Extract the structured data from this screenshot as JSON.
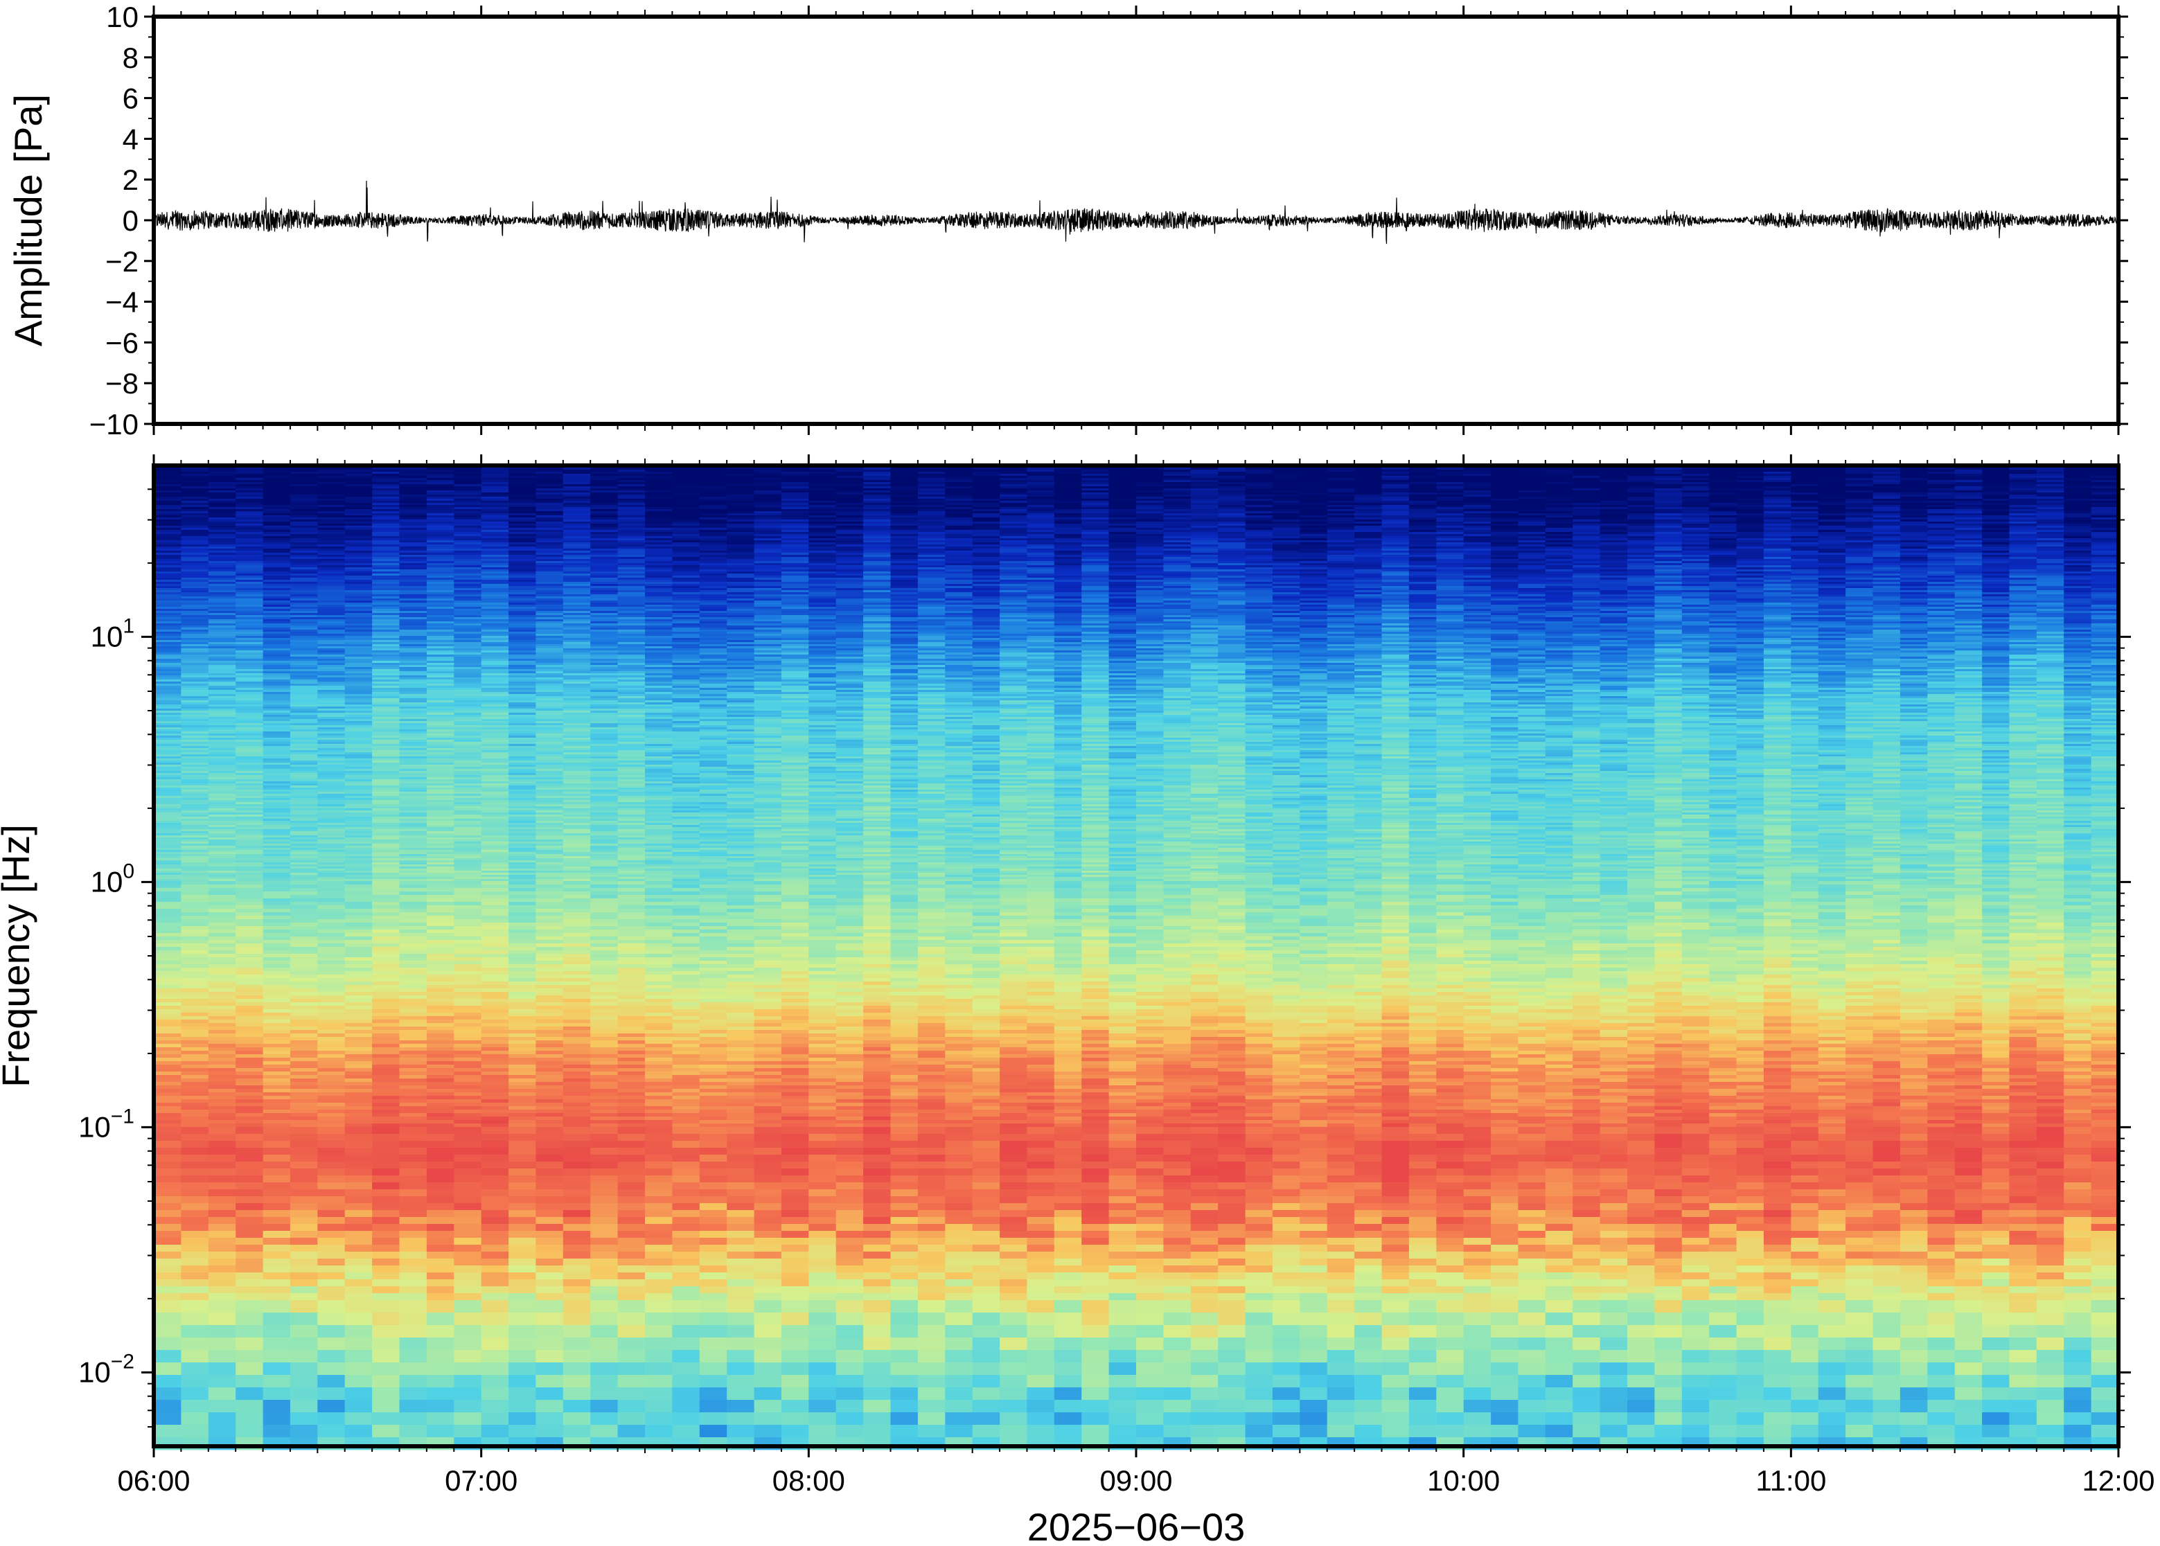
{
  "chart_data": [
    {
      "type": "line",
      "title": "",
      "xlabel": "",
      "ylabel": "Amplitude [Pa]",
      "x_range": [
        "06:00",
        "12:00"
      ],
      "ylim": [
        -10,
        10
      ],
      "y_ticks": [
        "10",
        "8",
        "6",
        "4",
        "2",
        "0",
        "−2",
        "−4",
        "−6",
        "−8",
        "−10"
      ],
      "y_tick_values": [
        10,
        8,
        6,
        4,
        2,
        0,
        -2,
        -4,
        -6,
        -8,
        -10
      ],
      "series": [
        {
          "description_values_note": "continuous pressure trace centred on 0 Pa",
          "baseline": 0,
          "typical_min": -1,
          "typical_max": 1,
          "peak": {
            "time": "06:39",
            "value": 2.1
          }
        }
      ],
      "line_color": "#000000",
      "grid": false
    },
    {
      "type": "heatmap",
      "title": "",
      "xlabel": "2025−06−03",
      "ylabel": "Frequency [Hz]",
      "x_ticks": [
        "06:00",
        "07:00",
        "08:00",
        "09:00",
        "10:00",
        "11:00",
        "12:00"
      ],
      "y_scale": "log",
      "ylim": [
        0.005,
        50
      ],
      "y_ticks": [
        {
          "base": "10",
          "exp": "1",
          "value": 10
        },
        {
          "base": "10",
          "exp": "0",
          "value": 1
        },
        {
          "base": "10",
          "exp": "−1",
          "value": 0.1
        },
        {
          "base": "10",
          "exp": "−2",
          "value": 0.01
        }
      ],
      "colormap": "spectral (blue = low power, red = high power)",
      "color_stops": [
        "#000a6e",
        "#0a2ac0",
        "#1a7ae0",
        "#4dd0e6",
        "#90e6b8",
        "#d8f08c",
        "#f8c860",
        "#f47850",
        "#e84848"
      ],
      "power_profile": [
        {
          "freq_hz": 40,
          "level": 0.0
        },
        {
          "freq_hz": 25,
          "level": 0.08
        },
        {
          "freq_hz": 12,
          "level": 0.22
        },
        {
          "freq_hz": 5,
          "level": 0.38
        },
        {
          "freq_hz": 1,
          "level": 0.47
        },
        {
          "freq_hz": 0.4,
          "level": 0.62
        },
        {
          "freq_hz": 0.2,
          "level": 0.82
        },
        {
          "freq_hz": 0.08,
          "level": 0.95
        },
        {
          "freq_hz": 0.04,
          "level": 0.85
        },
        {
          "freq_hz": 0.02,
          "level": 0.62
        },
        {
          "freq_hz": 0.008,
          "level": 0.4
        }
      ],
      "grid": false
    }
  ]
}
